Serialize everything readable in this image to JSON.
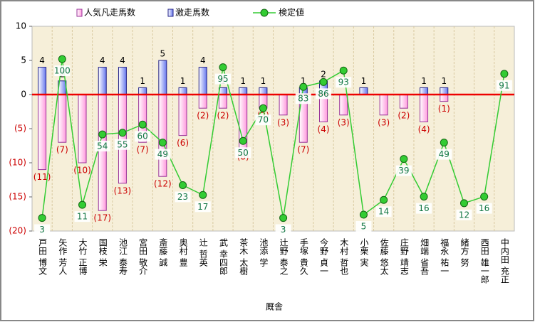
{
  "chart_data": {
    "type": "bar",
    "x_label": "厩舎",
    "categories": [
      "戸田 博文",
      "矢作 芳人",
      "大竹 正博",
      "国枝 栄",
      "池江 泰寿",
      "宮田 敬介",
      "斎藤 誠",
      "奥村 豊",
      "辻 哲英",
      "武 幸四郎",
      "茶木 太樹",
      "池添 学",
      "辻野 泰之",
      "手塚 貴久",
      "今野 貞一",
      "木村 哲也",
      "小栗 実",
      "佐藤 悠太",
      "庄野 靖志",
      "畑端 省吾",
      "福永 祐一",
      "緒方 努",
      "西田 雄一郎",
      "中内田 充正"
    ],
    "series": [
      {
        "name": "人気凡走馬数",
        "color": "#ff99dd",
        "values": [
          -11,
          -7,
          -10,
          -17,
          -13,
          -7,
          -12,
          -6,
          -2,
          -2,
          -8,
          -2,
          -3,
          -7,
          -4,
          -3,
          null,
          -3,
          -2,
          -4,
          -1,
          null,
          null,
          null
        ],
        "value_labels": [
          "(11)",
          "(7)",
          "(10)",
          "(17)",
          "(13)",
          "(7)",
          "(12)",
          "(6)",
          "(2)",
          "(2)",
          "(8)",
          "(2)",
          "(3)",
          "(7)",
          "(4)",
          "(3)",
          null,
          "(3)",
          "(2)",
          "(4)",
          "(1)",
          null,
          null,
          null
        ]
      },
      {
        "name": "激走馬数",
        "color": "#3344cc",
        "values": [
          4,
          2,
          null,
          4,
          4,
          1,
          5,
          1,
          4,
          1,
          1,
          1,
          null,
          1,
          2,
          null,
          1,
          null,
          null,
          1,
          1,
          null,
          null,
          null
        ]
      },
      {
        "name": "検定値",
        "color": "#33cc33",
        "type": "line",
        "axis": "y2",
        "values": [
          3,
          100,
          11,
          54,
          55,
          60,
          49,
          23,
          17,
          95,
          50,
          70,
          3,
          83,
          86,
          93,
          5,
          14,
          39,
          16,
          49,
          12,
          16,
          91
        ]
      }
    ],
    "ylim": [
      -20,
      10
    ],
    "yticks": [
      10,
      5,
      0,
      {
        "value": -5,
        "label": "(5)"
      },
      {
        "value": -10,
        "label": "(10)"
      },
      {
        "value": -15,
        "label": "(15)"
      },
      {
        "value": -20,
        "label": "(20)"
      }
    ],
    "y2lim": [
      -5,
      120
    ],
    "grid": true
  }
}
